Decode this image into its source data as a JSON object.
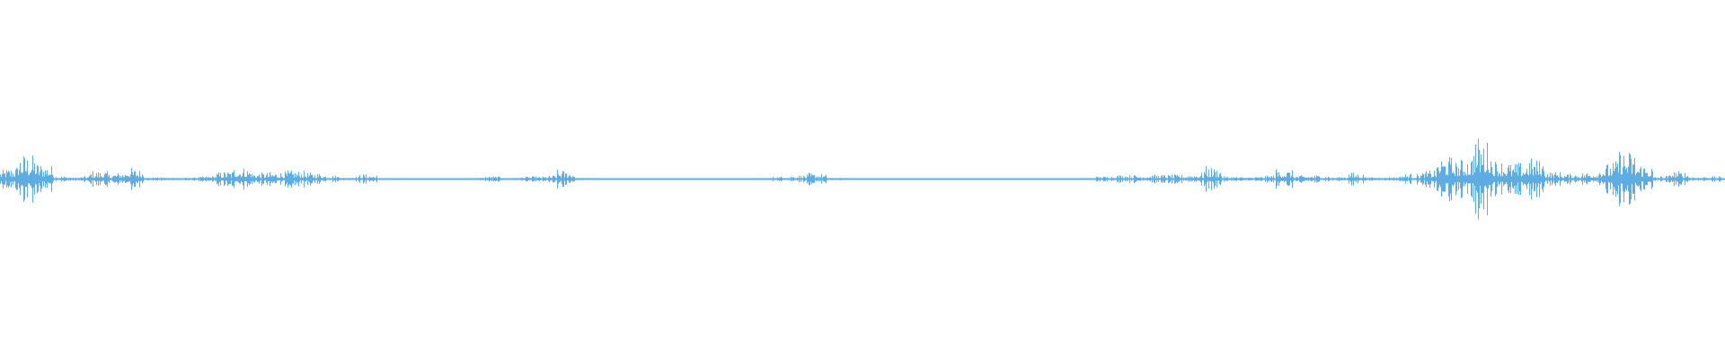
{
  "waveform": {
    "color": "#5dade2",
    "background": "#ffffff",
    "envelope": [
      0.2,
      0.6,
      0.4,
      0.08,
      0.03,
      0.2,
      0.12,
      0.28,
      0.04,
      0.04,
      0.03,
      0.05,
      0.16,
      0.3,
      0.15,
      0.16,
      0.2,
      0.15,
      0.1,
      0.03,
      0.12,
      0.02,
      0.02,
      0.02,
      0.02,
      0.02,
      0.02,
      0.07,
      0.02,
      0.06,
      0.05,
      0.22,
      0.03,
      0.01,
      0.01,
      0.01,
      0.01,
      0.01,
      0.01,
      0.01,
      0.01,
      0.01,
      0.02,
      0.06,
      0.08,
      0.14,
      0.03,
      0.015,
      0.015,
      0.015,
      0.015,
      0.015,
      0.015,
      0.015,
      0.015,
      0.015,
      0.015,
      0.015,
      0.015,
      0.015,
      0.015,
      0.06,
      0.1,
      0.1,
      0.1,
      0.1,
      0.1,
      0.3,
      0.06,
      0.05,
      0.05,
      0.24,
      0.08,
      0.1,
      0.03,
      0.16,
      0.04,
      0.04,
      0.12,
      0.14,
      0.55,
      0.4,
      1.0,
      0.45,
      0.35,
      0.5,
      0.18,
      0.12,
      0.15,
      0.3,
      0.7,
      0.4,
      0.05,
      0.2,
      0.06,
      0.06
    ]
  }
}
